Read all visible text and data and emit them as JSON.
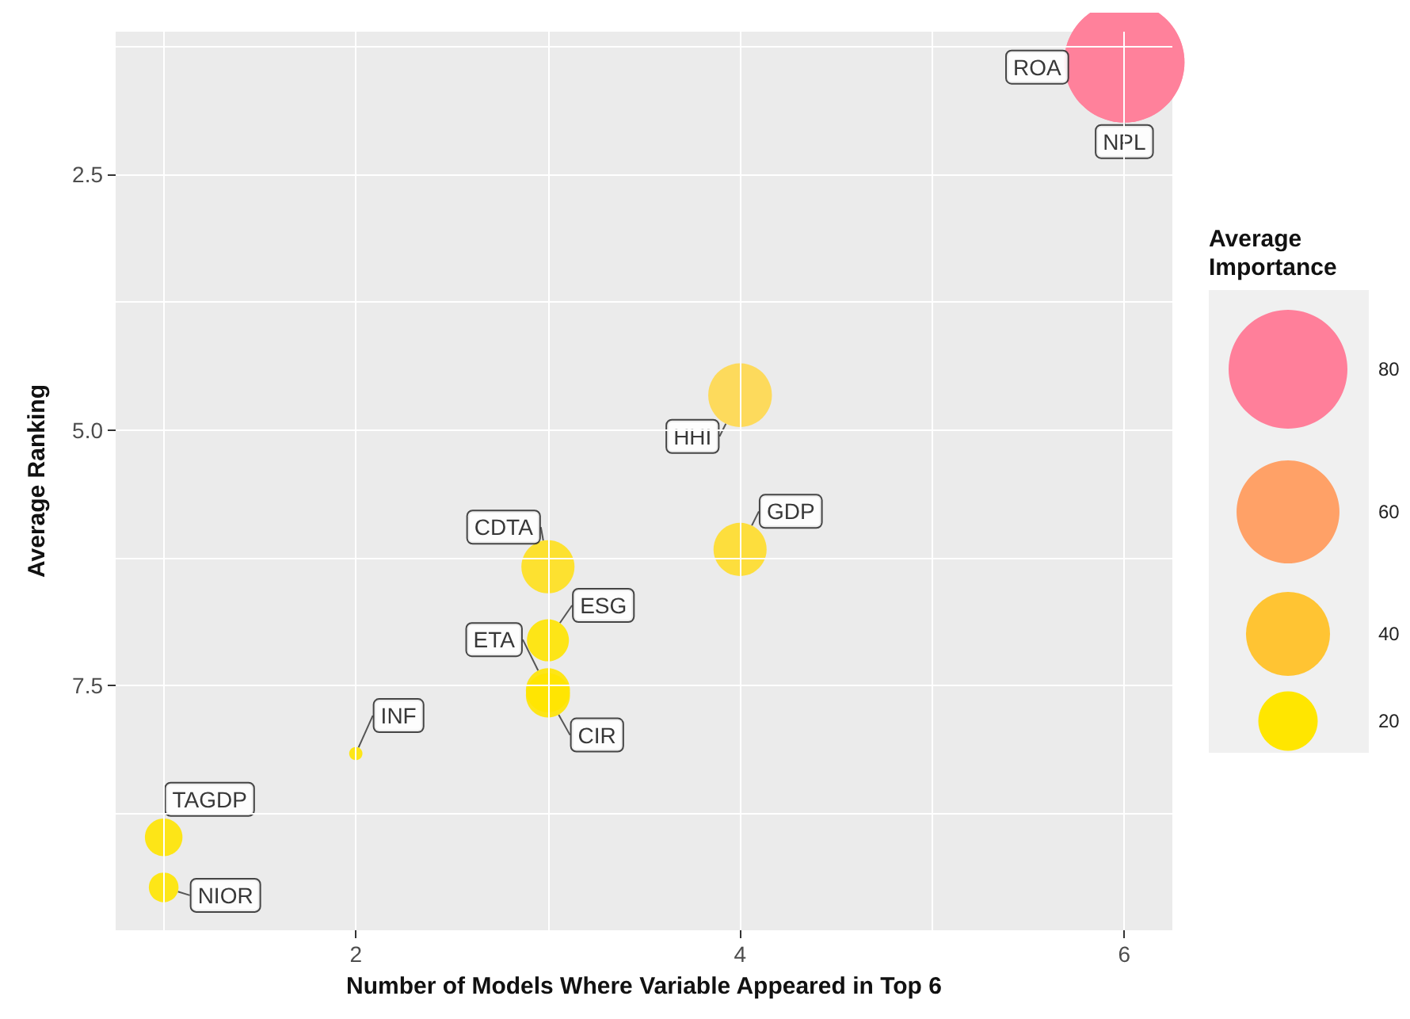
{
  "chart_data": {
    "type": "bubble",
    "xlabel": "Number of Models Where Variable Appeared in Top 6",
    "ylabel": "Average Ranking",
    "legend_title": "Average Importance",
    "xlim": [
      0.75,
      6.25
    ],
    "xticks": [
      {
        "value": 1,
        "label": null
      },
      2,
      {
        "value": 3,
        "label": null
      },
      4,
      {
        "value": 5,
        "label": null
      },
      6
    ],
    "ylim": [
      9.9,
      1.1
    ],
    "yticks": [
      {
        "value": 1.25,
        "label": null
      },
      2.5,
      {
        "value": 3.75,
        "label": null
      },
      {
        "value": 5,
        "label": "5.0"
      },
      {
        "value": 6.25,
        "label": null
      },
      7.5,
      {
        "value": 8.75,
        "label": null
      }
    ],
    "size_legend": [
      20,
      40,
      60,
      80
    ],
    "grid": true,
    "legend": "right",
    "series": [
      {
        "name": "ROA",
        "color": "#ff7f9a",
        "x": [
          6
        ],
        "values": [
          1.4
        ],
        "sizes": [
          82
        ]
      },
      {
        "name": "NPL",
        "color": "#ff7f9a",
        "x": [
          6
        ],
        "values": [
          1.4
        ],
        "sizes": [
          82
        ]
      },
      {
        "name": "HHI",
        "color": "#ffd84c",
        "x": [
          4
        ],
        "values": [
          4.66
        ],
        "sizes": [
          23
        ]
      },
      {
        "name": "GDP",
        "color": "#ffdd2a",
        "x": [
          4
        ],
        "values": [
          6.17
        ],
        "sizes": [
          16
        ]
      },
      {
        "name": "CDTA",
        "color": "#ffe01c",
        "x": [
          3
        ],
        "values": [
          6.34
        ],
        "sizes": [
          16
        ]
      },
      {
        "name": "ESG",
        "color": "#ffe400",
        "x": [
          3
        ],
        "values": [
          7.06
        ],
        "sizes": [
          10
        ]
      },
      {
        "name": "ETA",
        "color": "#ffe400",
        "x": [
          3
        ],
        "values": [
          7.55
        ],
        "sizes": [
          11
        ]
      },
      {
        "name": "CIR",
        "color": "#ffe400",
        "x": [
          3
        ],
        "values": [
          7.6
        ],
        "sizes": [
          11
        ]
      },
      {
        "name": "INF",
        "color": "#ffe600",
        "x": [
          2
        ],
        "values": [
          8.17
        ],
        "sizes": [
          1
        ]
      },
      {
        "name": "TAGDP",
        "color": "#ffe400",
        "x": [
          1
        ],
        "values": [
          8.99
        ],
        "sizes": [
          8
        ]
      },
      {
        "name": "NIOR",
        "color": "#ffe600",
        "x": [
          1
        ],
        "values": [
          9.48
        ],
        "sizes": [
          5
        ]
      }
    ]
  }
}
